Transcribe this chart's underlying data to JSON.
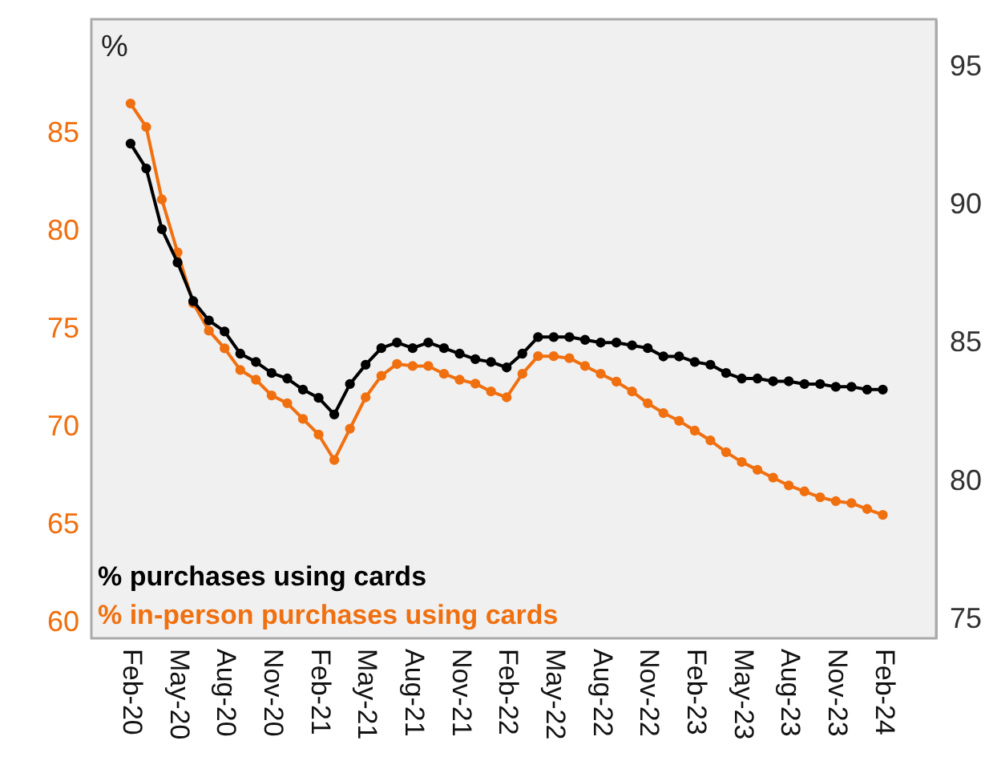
{
  "chart_data": {
    "type": "line",
    "categories": [
      "Feb-20",
      null,
      null,
      "May-20",
      null,
      null,
      "Aug-20",
      null,
      null,
      "Nov-20",
      null,
      null,
      "Feb-21",
      null,
      null,
      "May-21",
      null,
      null,
      "Aug-21",
      null,
      null,
      "Nov-21",
      null,
      null,
      "Feb-22",
      null,
      null,
      "May-22",
      null,
      null,
      "Aug-22",
      null,
      null,
      "Nov-22",
      null,
      null,
      "Feb-23",
      null,
      null,
      "May-23",
      null,
      null,
      "Aug-23",
      null,
      null,
      "Nov-23",
      null,
      null,
      "Feb-24"
    ],
    "ylabel": "%",
    "series": [
      {
        "name": "% purchases using cards",
        "color": "#000000",
        "axis": "y2",
        "values": [
          92.2,
          91.3,
          89.1,
          87.9,
          86.5,
          85.8,
          85.4,
          84.6,
          84.3,
          83.9,
          83.7,
          83.3,
          83.0,
          82.4,
          83.5,
          84.2,
          84.8,
          85.0,
          84.8,
          85.0,
          84.8,
          84.6,
          84.4,
          84.3,
          84.1,
          84.6,
          85.2,
          85.2,
          85.2,
          85.1,
          85.0,
          85.0,
          84.9,
          84.8,
          84.5,
          84.5,
          84.3,
          84.2,
          83.9,
          83.7,
          83.7,
          83.6,
          83.6,
          83.5,
          83.5,
          83.4,
          83.4,
          83.3,
          83.3
        ]
      },
      {
        "name": "% in-person purchases using cards",
        "color": "#f07010",
        "values": [
          86.5,
          85.3,
          81.6,
          78.9,
          76.3,
          74.9,
          74.0,
          72.9,
          72.4,
          71.6,
          71.2,
          70.4,
          69.6,
          68.3,
          69.9,
          71.5,
          72.6,
          73.2,
          73.1,
          73.1,
          72.7,
          72.4,
          72.2,
          71.8,
          71.5,
          72.7,
          73.6,
          73.6,
          73.5,
          73.1,
          72.7,
          72.3,
          71.8,
          71.2,
          70.7,
          70.3,
          69.8,
          69.3,
          68.7,
          68.2,
          67.8,
          67.4,
          67.0,
          66.7,
          66.4,
          66.2,
          66.1,
          65.8,
          65.5
        ]
      }
    ],
    "ylim": [
      59.2,
      90.8
    ],
    "yticks": [
      60,
      65,
      70,
      75,
      80,
      85
    ],
    "y2lim": [
      74.3,
      96.7
    ],
    "y2ticks": [
      75,
      80,
      85,
      90,
      95
    ],
    "legend": "bottom left",
    "marker": "circle",
    "line_style": "solid"
  }
}
